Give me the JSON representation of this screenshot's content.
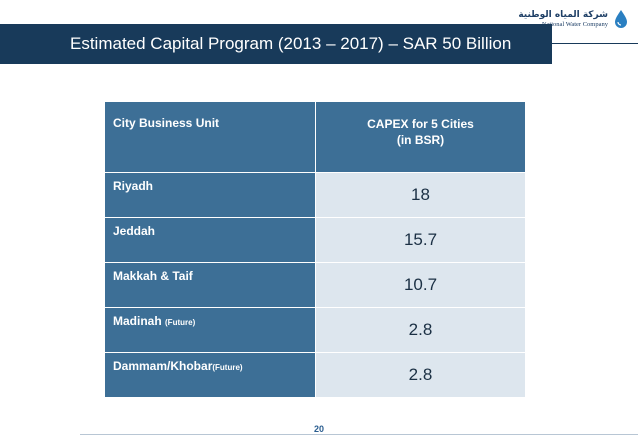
{
  "slide": {
    "title": "Estimated Capital Program (2013 – 2017) – SAR 50 Billion",
    "page_number": "20",
    "logo": {
      "arabic_name": "شركة المياه الوطنية",
      "english_name": "National Water Company"
    }
  },
  "table": {
    "headers": {
      "unit": "City Business Unit",
      "capex_line1": "CAPEX for 5 Cities",
      "capex_line2": "(in BSR)"
    },
    "rows": [
      {
        "name": "Riyadh",
        "suffix": "",
        "value": "18"
      },
      {
        "name": "Jeddah",
        "suffix": "",
        "value": "15.7"
      },
      {
        "name": "Makkah & Taif",
        "suffix": "",
        "value": "10.7"
      },
      {
        "name": "Madinah ",
        "suffix": "(Future)",
        "value": "2.8"
      },
      {
        "name": "Dammam/Khobar",
        "suffix": "(Future)",
        "value": "2.8"
      }
    ]
  },
  "colors": {
    "title_bar": "#183a5a",
    "header_cell": "#3d6f96",
    "value_cell": "#dde6ee"
  }
}
